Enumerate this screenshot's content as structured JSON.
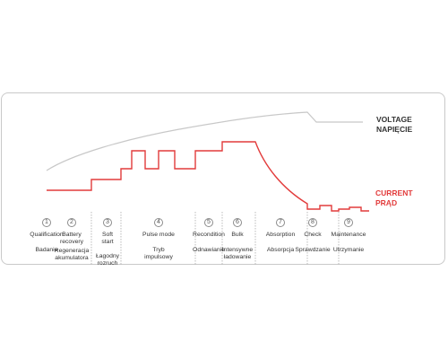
{
  "colors": {
    "voltage_line": "#c8c8c8",
    "current_line": "#e23b3b",
    "divider": "#aaaaaa",
    "text": "#333333"
  },
  "labels": {
    "voltage": [
      "VOLTAGE",
      "NAPIĘCIE"
    ],
    "current": [
      "CURRENT",
      "PRĄD"
    ]
  },
  "steps": [
    {
      "number": "1",
      "en": [
        "Qualification"
      ],
      "pl": [
        "Badanie"
      ]
    },
    {
      "number": "2",
      "en": [
        "Battery",
        "recovery"
      ],
      "pl": [
        "Regeneracja",
        "akumulatora"
      ]
    },
    {
      "number": "3",
      "en": [
        "Soft",
        "start"
      ],
      "pl": [
        "Łagodny",
        "rozruch"
      ]
    },
    {
      "number": "4",
      "en": [
        "Pulse mode"
      ],
      "pl": [
        "Tryb",
        "impulsowy"
      ]
    },
    {
      "number": "5",
      "en": [
        "Recondition"
      ],
      "pl": [
        "Odnawianie"
      ]
    },
    {
      "number": "6",
      "en": [
        "Bulk"
      ],
      "pl": [
        "Intensywne",
        "ładowanie"
      ]
    },
    {
      "number": "7",
      "en": [
        "Absorption"
      ],
      "pl": [
        "Absorpcja"
      ]
    },
    {
      "number": "8",
      "en": [
        "Check"
      ],
      "pl": [
        "Sprawdzanie"
      ]
    },
    {
      "number": "9",
      "en": [
        "Maintenance"
      ],
      "pl": [
        "Utrzymanie"
      ]
    }
  ]
}
